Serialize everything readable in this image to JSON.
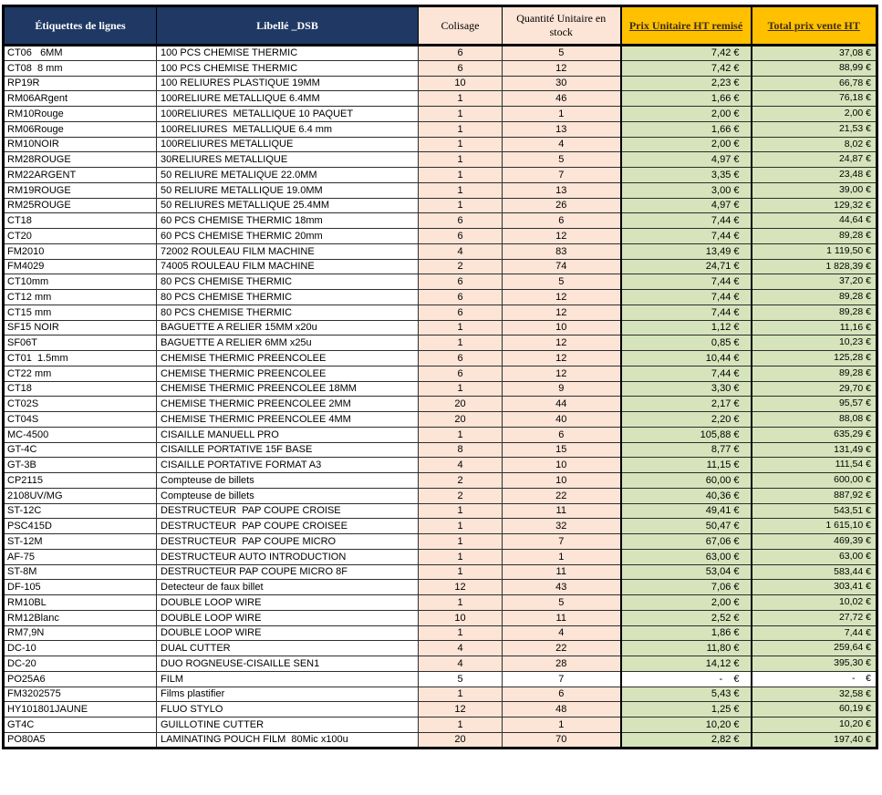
{
  "colors": {
    "navy": "#1F3864",
    "peach": "#FCE4D6",
    "amber": "#FFC000",
    "amber_text": "#3E2F17",
    "green": "#D6E4BC",
    "grid": "#2e2e2e"
  },
  "table": {
    "columns": [
      {
        "key": "etiquette",
        "label": "Étiquettes de lignes"
      },
      {
        "key": "libelle",
        "label": "Libellé _DSB"
      },
      {
        "key": "colisage",
        "label": "Colisage"
      },
      {
        "key": "quantite",
        "label": "Quantité Unitaire en stock"
      },
      {
        "key": "prix",
        "label": "Prix Unitaire HT remisé"
      },
      {
        "key": "total",
        "label": "Total prix vente HT "
      }
    ],
    "rows": [
      {
        "e": "CT06   6MM",
        "l": "100 PCS CHEMISE THERMIC",
        "c": "6",
        "q": "5",
        "p": "7,42 €",
        "t": "37,08 €"
      },
      {
        "e": "CT08  8 mm",
        "l": "100 PCS CHEMISE THERMIC",
        "c": "6",
        "q": "12",
        "p": "7,42 €",
        "t": "88,99 €"
      },
      {
        "e": "RP19R",
        "l": "100 RELIURES PLASTIQUE 19MM",
        "c": "10",
        "q": "30",
        "p": "2,23 €",
        "t": "66,78 €"
      },
      {
        "e": "RM06ARgent",
        "l": "100RELIURE METALLIQUE 6.4MM",
        "c": "1",
        "q": "46",
        "p": "1,66 €",
        "t": "76,18 €"
      },
      {
        "e": "RM10Rouge",
        "l": "100RELIURES  METALLIQUE 10 PAQUET",
        "c": "1",
        "q": "1",
        "p": "2,00 €",
        "t": "2,00 €"
      },
      {
        "e": "RM06Rouge",
        "l": "100RELIURES  METALLIQUE 6.4 mm",
        "c": "1",
        "q": "13",
        "p": "1,66 €",
        "t": "21,53 €"
      },
      {
        "e": "RM10NOIR",
        "l": "100RELIURES METALLIQUE",
        "c": "1",
        "q": "4",
        "p": "2,00 €",
        "t": "8,02 €"
      },
      {
        "e": "RM28ROUGE",
        "l": "30RELIURES METALLIQUE",
        "c": "1",
        "q": "5",
        "p": "4,97 €",
        "t": "24,87 €"
      },
      {
        "e": "RM22ARGENT",
        "l": "50 RELIURE METALIQUE 22.0MM",
        "c": "1",
        "q": "7",
        "p": "3,35 €",
        "t": "23,48 €"
      },
      {
        "e": "RM19ROUGE",
        "l": "50 RELIURE METALLIQUE 19.0MM",
        "c": "1",
        "q": "13",
        "p": "3,00 €",
        "t": "39,00 €"
      },
      {
        "e": "RM25ROUGE",
        "l": "50 RELIURES METALLIQUE 25.4MM",
        "c": "1",
        "q": "26",
        "p": "4,97 €",
        "t": "129,32 €"
      },
      {
        "e": "CT18",
        "l": "60 PCS CHEMISE THERMIC 18mm",
        "c": "6",
        "q": "6",
        "p": "7,44 €",
        "t": "44,64 €"
      },
      {
        "e": "CT20",
        "l": "60 PCS CHEMISE THERMIC 20mm",
        "c": "6",
        "q": "12",
        "p": "7,44 €",
        "t": "89,28 €"
      },
      {
        "e": "FM2010",
        "l": "72002 ROULEAU FILM MACHINE",
        "c": "4",
        "q": "83",
        "p": "13,49 €",
        "t": "1 119,50 €"
      },
      {
        "e": "FM4029",
        "l": "74005 ROULEAU FILM MACHINE",
        "c": "2",
        "q": "74",
        "p": "24,71 €",
        "t": "1 828,39 €"
      },
      {
        "e": "CT10mm",
        "l": "80 PCS CHEMISE THERMIC",
        "c": "6",
        "q": "5",
        "p": "7,44 €",
        "t": "37,20 €"
      },
      {
        "e": "CT12 mm",
        "l": "80 PCS CHEMISE THERMIC",
        "c": "6",
        "q": "12",
        "p": "7,44 €",
        "t": "89,28 €"
      },
      {
        "e": "CT15 mm",
        "l": "80 PCS CHEMISE THERMIC",
        "c": "6",
        "q": "12",
        "p": "7,44 €",
        "t": "89,28 €"
      },
      {
        "e": "SF15 NOIR",
        "l": "BAGUETTE A RELIER 15MM x20u",
        "c": "1",
        "q": "10",
        "p": "1,12 €",
        "t": "11,16 €"
      },
      {
        "e": "SF06T",
        "l": "BAGUETTE A RELIER 6MM x25u",
        "c": "1",
        "q": "12",
        "p": "0,85 €",
        "t": "10,23 €"
      },
      {
        "e": "CT01  1.5mm",
        "l": "CHEMISE THERMIC PREENCOLEE",
        "c": "6",
        "q": "12",
        "p": "10,44 €",
        "t": "125,28 €"
      },
      {
        "e": "CT22 mm",
        "l": "CHEMISE THERMIC PREENCOLEE",
        "c": "6",
        "q": "12",
        "p": "7,44 €",
        "t": "89,28 €"
      },
      {
        "e": "CT18",
        "l": "CHEMISE THERMIC PREENCOLEE 18MM",
        "c": "1",
        "q": "9",
        "p": "3,30 €",
        "t": "29,70 €"
      },
      {
        "e": "CT02S",
        "l": "CHEMISE THERMIC PREENCOLEE 2MM",
        "c": "20",
        "q": "44",
        "p": "2,17 €",
        "t": "95,57 €"
      },
      {
        "e": "CT04S",
        "l": "CHEMISE THERMIC PREENCOLEE 4MM",
        "c": "20",
        "q": "40",
        "p": "2,20 €",
        "t": "88,08 €"
      },
      {
        "e": "MC-4500",
        "l": "CISAILLE MANUELL PRO",
        "c": "1",
        "q": "6",
        "p": "105,88 €",
        "t": "635,29 €"
      },
      {
        "e": "GT-4C",
        "l": "CISAILLE PORTATIVE 15F BASE",
        "c": "8",
        "q": "15",
        "p": "8,77 €",
        "t": "131,49 €"
      },
      {
        "e": "GT-3B",
        "l": "CISAILLE PORTATIVE FORMAT A3",
        "c": "4",
        "q": "10",
        "p": "11,15 €",
        "t": "111,54 €"
      },
      {
        "e": "CP2115",
        "l": "Compteuse de billets",
        "c": "2",
        "q": "10",
        "p": "60,00 €",
        "t": "600,00 €"
      },
      {
        "e": "2108UV/MG",
        "l": "Compteuse de billets",
        "c": "2",
        "q": "22",
        "p": "40,36 €",
        "t": "887,92 €"
      },
      {
        "e": "ST-12C",
        "l": "DESTRUCTEUR  PAP COUPE CROISE",
        "c": "1",
        "q": "11",
        "p": "49,41 €",
        "t": "543,51 €"
      },
      {
        "e": "PSC415D",
        "l": "DESTRUCTEUR  PAP COUPE CROISEE",
        "c": "1",
        "q": "32",
        "p": "50,47 €",
        "t": "1 615,10 €"
      },
      {
        "e": "ST-12M",
        "l": "DESTRUCTEUR  PAP COUPE MICRO",
        "c": "1",
        "q": "7",
        "p": "67,06 €",
        "t": "469,39 €"
      },
      {
        "e": "AF-75",
        "l": "DESTRUCTEUR AUTO INTRODUCTION",
        "c": "1",
        "q": "1",
        "p": "63,00 €",
        "t": "63,00 €"
      },
      {
        "e": "ST-8M",
        "l": "DESTRUCTEUR PAP COUPE MICRO 8F",
        "c": "1",
        "q": "11",
        "p": "53,04 €",
        "t": "583,44 €"
      },
      {
        "e": "DF-105",
        "l": "Detecteur de faux billet",
        "c": "12",
        "q": "43",
        "p": "7,06 €",
        "t": "303,41 €"
      },
      {
        "e": "RM10BL",
        "l": "DOUBLE LOOP WIRE",
        "c": "1",
        "q": "5",
        "p": "2,00 €",
        "t": "10,02 €"
      },
      {
        "e": "RM12Blanc",
        "l": "DOUBLE LOOP WIRE",
        "c": "10",
        "q": "11",
        "p": "2,52 €",
        "t": "27,72 €"
      },
      {
        "e": "RM7,9N",
        "l": "DOUBLE LOOP WIRE",
        "c": "1",
        "q": "4",
        "p": "1,86 €",
        "t": "7,44 €"
      },
      {
        "e": "DC-10",
        "l": "DUAL CUTTER",
        "c": "4",
        "q": "22",
        "p": "11,80 €",
        "t": "259,64 €"
      },
      {
        "e": "DC-20",
        "l": "DUO ROGNEUSE-CISAILLE SEN1",
        "c": "4",
        "q": "28",
        "p": "14,12 €",
        "t": "395,30 €"
      },
      {
        "e": "PO25A6",
        "l": "FILM",
        "c": "5",
        "q": "7",
        "p": "-    €",
        "t": "-    €",
        "fill": "none"
      },
      {
        "e": "FM3202575",
        "l": "Films plastifier",
        "c": "1",
        "q": "6",
        "p": "5,43 €",
        "t": "32,58 €"
      },
      {
        "e": "HY101801JAUNE",
        "l": "FLUO STYLO",
        "c": "12",
        "q": "48",
        "p": "1,25 €",
        "t": "60,19 €"
      },
      {
        "e": "GT4C",
        "l": "GUILLOTINE CUTTER",
        "c": "1",
        "q": "1",
        "p": "10,20 €",
        "t": "10,20 €"
      },
      {
        "e": "PO80A5",
        "l": "LAMINATING POUCH FILM  80Mic x100u",
        "c": "20",
        "q": "70",
        "p": "2,82 €",
        "t": "197,40 €"
      }
    ]
  }
}
